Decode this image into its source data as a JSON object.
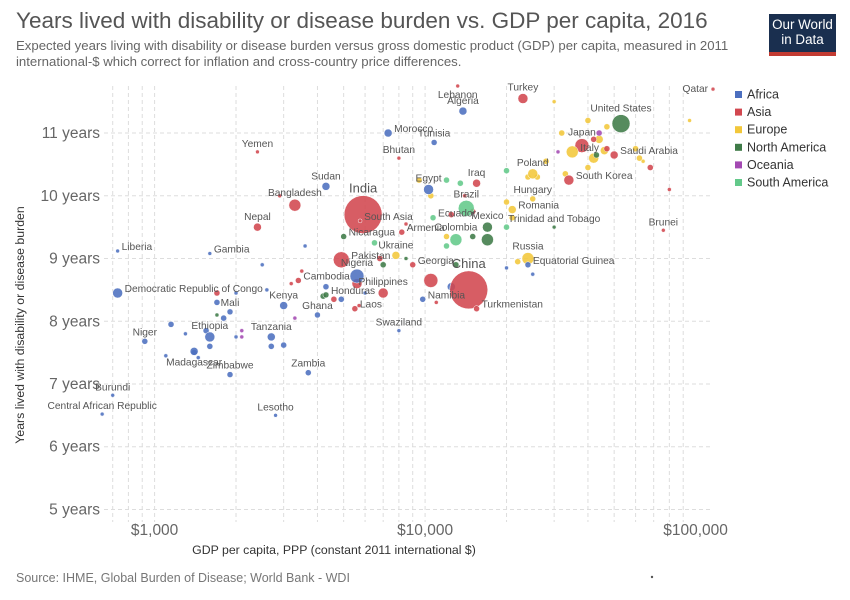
{
  "header": {
    "title": "Years lived with disability or disease burden vs. GDP per capita, 2016",
    "subtitle": "Expected years living with disability or disease burden versus gross domestic product (GDP) per capita, measured in 2011 international-$ which correct for inflation and cross-country price differences.",
    "logo_line1": "Our World",
    "logo_line2": "in Data"
  },
  "footer": {
    "source": "Source: IHME, Global Burden of Disease; World Bank - WDI"
  },
  "colors": {
    "Africa": "#4c6fbf",
    "Asia": "#d2474f",
    "Europe": "#f2c73a",
    "North America": "#3f7b48",
    "Oceania": "#a349b2",
    "South America": "#63c98a",
    "grid": "#dddddd",
    "text": "#555555"
  },
  "chart_data": {
    "type": "scatter",
    "title": "Years lived with disability or disease burden vs. GDP per capita, 2016",
    "xlabel": "GDP per capita, PPP (constant 2011 international $)",
    "ylabel": "Years lived with disability or disease burden",
    "x_scale": "log",
    "xlim": [
      650,
      115000
    ],
    "ylim": [
      4.8,
      11.75
    ],
    "x_ticks": [
      {
        "value": 1000,
        "label": "$1,000"
      },
      {
        "value": 10000,
        "label": "$10,000"
      },
      {
        "value": 100000,
        "label": "$100,000"
      }
    ],
    "y_ticks": [
      {
        "value": 5,
        "label": "5 years"
      },
      {
        "value": 6,
        "label": "6 years"
      },
      {
        "value": 7,
        "label": "7 years"
      },
      {
        "value": 8,
        "label": "8 years"
      },
      {
        "value": 9,
        "label": "9 years"
      },
      {
        "value": 10,
        "label": "10 years"
      },
      {
        "value": 11,
        "label": "11 years"
      }
    ],
    "legend": [
      "Africa",
      "Asia",
      "Europe",
      "North America",
      "Oceania",
      "South America"
    ],
    "legend_position": "right",
    "grid": true,
    "points": [
      {
        "label": "Qatar",
        "region": "Asia",
        "x": 116000,
        "y": 11.7,
        "size": 2,
        "label_side": "left"
      },
      {
        "label": "Lebanon",
        "region": "Asia",
        "x": 13200,
        "y": 11.75,
        "size": 2,
        "label_side": "below"
      },
      {
        "label": "Turkey",
        "region": "Asia",
        "x": 23000,
        "y": 11.55,
        "size": 5,
        "label_side": "above"
      },
      {
        "label": "Algeria",
        "region": "Africa",
        "x": 13800,
        "y": 11.35,
        "size": 4,
        "label_side": "above"
      },
      {
        "label": "United States",
        "region": "North America",
        "x": 53000,
        "y": 11.15,
        "size": 9,
        "label_side": "above"
      },
      {
        "label": "Morocco",
        "region": "Africa",
        "x": 7300,
        "y": 11.0,
        "size": 4,
        "label_side": "right"
      },
      {
        "label": "Tunisia",
        "region": "Africa",
        "x": 10800,
        "y": 10.85,
        "size": 3,
        "label_side": "above"
      },
      {
        "label": "Japan",
        "region": "Asia",
        "x": 38000,
        "y": 10.8,
        "size": 7,
        "label_side": "above"
      },
      {
        "label": "Italy",
        "region": "Europe",
        "x": 35000,
        "y": 10.7,
        "size": 6,
        "label_side": "right"
      },
      {
        "label": "Saudi Arabia",
        "region": "Asia",
        "x": 50000,
        "y": 10.65,
        "size": 4,
        "label_side": "right"
      },
      {
        "label": "Yemen",
        "region": "Asia",
        "x": 2400,
        "y": 10.7,
        "size": 2,
        "label_side": "above"
      },
      {
        "label": "Bhutan",
        "region": "Asia",
        "x": 8000,
        "y": 10.6,
        "size": 2,
        "label_side": "above"
      },
      {
        "label": "Poland",
        "region": "Europe",
        "x": 25000,
        "y": 10.35,
        "size": 5,
        "label_side": "above"
      },
      {
        "label": "South Korea",
        "region": "Asia",
        "x": 34000,
        "y": 10.25,
        "size": 5,
        "label_side": "right"
      },
      {
        "label": "Iraq",
        "region": "Asia",
        "x": 15500,
        "y": 10.2,
        "size": 4,
        "label_side": "above"
      },
      {
        "label": "Egypt",
        "region": "Africa",
        "x": 10300,
        "y": 10.1,
        "size": 5,
        "label_side": "above"
      },
      {
        "label": "Sudan",
        "region": "Africa",
        "x": 4300,
        "y": 10.15,
        "size": 4,
        "label_side": "above"
      },
      {
        "label": "Hungary",
        "region": "Europe",
        "x": 25000,
        "y": 9.95,
        "size": 3,
        "label_side": "above"
      },
      {
        "label": "Bangladesh",
        "region": "Asia",
        "x": 3300,
        "y": 9.85,
        "size": 6,
        "label_side": "above"
      },
      {
        "label": "India",
        "region": "Asia",
        "x": 5900,
        "y": 9.7,
        "size": 19,
        "label_side": "above"
      },
      {
        "label": "Brazil",
        "region": "South America",
        "x": 14200,
        "y": 9.8,
        "size": 8,
        "label_side": "above"
      },
      {
        "label": "Romania",
        "region": "Europe",
        "x": 21000,
        "y": 9.78,
        "size": 4,
        "label_side": "right"
      },
      {
        "label": "Ecuador",
        "region": "South America",
        "x": 10700,
        "y": 9.65,
        "size": 3,
        "label_side": "right"
      },
      {
        "label": "South Asia",
        "region": "Asia",
        "x": 5750,
        "y": 9.6,
        "size": 2,
        "label_side": "right"
      },
      {
        "label": "Trinidad and Tobago",
        "region": "North America",
        "x": 30000,
        "y": 9.5,
        "size": 2,
        "label_side": "above"
      },
      {
        "label": "Brunei",
        "region": "Asia",
        "x": 76000,
        "y": 9.45,
        "size": 2,
        "label_side": "above"
      },
      {
        "label": "Mexico",
        "region": "North America",
        "x": 17000,
        "y": 9.5,
        "size": 5,
        "label_side": "above"
      },
      {
        "label": "Nepal",
        "region": "Asia",
        "x": 2400,
        "y": 9.5,
        "size": 4,
        "label_side": "above"
      },
      {
        "label": "Nicaragua",
        "region": "North America",
        "x": 5000,
        "y": 9.35,
        "size": 3,
        "label_side": "right"
      },
      {
        "label": "Armenia",
        "region": "Asia",
        "x": 8200,
        "y": 9.42,
        "size": 3,
        "label_side": "right"
      },
      {
        "label": "Colombia",
        "region": "South America",
        "x": 13000,
        "y": 9.3,
        "size": 6,
        "label_side": "above"
      },
      {
        "label": "Liberia",
        "region": "Africa",
        "x": 730,
        "y": 9.12,
        "size": 2,
        "label_side": "right"
      },
      {
        "label": "Gambia",
        "region": "Africa",
        "x": 1600,
        "y": 9.08,
        "size": 2,
        "label_side": "right"
      },
      {
        "label": "Ukraine",
        "region": "Europe",
        "x": 7800,
        "y": 9.05,
        "size": 4,
        "label_side": "above"
      },
      {
        "label": "Russia",
        "region": "Europe",
        "x": 24000,
        "y": 9.0,
        "size": 6,
        "label_side": "above"
      },
      {
        "label": "Pakistan",
        "region": "Asia",
        "x": 4900,
        "y": 8.98,
        "size": 8,
        "label_side": "right"
      },
      {
        "label": "Georgia",
        "region": "Asia",
        "x": 9000,
        "y": 8.9,
        "size": 3,
        "label_side": "right"
      },
      {
        "label": "China",
        "region": "Asia",
        "x": 14500,
        "y": 8.5,
        "size": 19,
        "label_side": "above"
      },
      {
        "label": "Nigeria",
        "region": "Africa",
        "x": 5600,
        "y": 8.72,
        "size": 7,
        "label_side": "above"
      },
      {
        "label": "Equatorial Guinea",
        "region": "Africa",
        "x": 24000,
        "y": 8.9,
        "size": 3,
        "label_side": "right"
      },
      {
        "label": "Cambodia",
        "region": "Asia",
        "x": 3400,
        "y": 8.65,
        "size": 3,
        "label_side": "right"
      },
      {
        "label": "Democratic Republic of Congo",
        "region": "Africa",
        "x": 730,
        "y": 8.45,
        "size": 5,
        "label_side": "right"
      },
      {
        "label": "Philippines",
        "region": "Asia",
        "x": 7000,
        "y": 8.45,
        "size": 5,
        "label_side": "above"
      },
      {
        "label": "Honduras",
        "region": "North America",
        "x": 4300,
        "y": 8.42,
        "size": 3,
        "label_side": "right"
      },
      {
        "label": "Namibia",
        "region": "Africa",
        "x": 9800,
        "y": 8.35,
        "size": 3,
        "label_side": "right"
      },
      {
        "label": "Kenya",
        "region": "Africa",
        "x": 3000,
        "y": 8.25,
        "size": 4,
        "label_side": "above"
      },
      {
        "label": "Mali",
        "region": "Africa",
        "x": 1900,
        "y": 8.15,
        "size": 3,
        "label_side": "above"
      },
      {
        "label": "Turkmenistan",
        "region": "Asia",
        "x": 15500,
        "y": 8.2,
        "size": 3,
        "label_side": "right"
      },
      {
        "label": "Laos",
        "region": "Asia",
        "x": 5500,
        "y": 8.2,
        "size": 3,
        "label_side": "right"
      },
      {
        "label": "Ghana",
        "region": "Africa",
        "x": 4000,
        "y": 8.1,
        "size": 3,
        "label_side": "above"
      },
      {
        "label": "Swaziland",
        "region": "Africa",
        "x": 8000,
        "y": 7.85,
        "size": 2,
        "label_side": "above"
      },
      {
        "label": "Niger",
        "region": "Africa",
        "x": 920,
        "y": 7.68,
        "size": 3,
        "label_side": "above"
      },
      {
        "label": "Ethiopia",
        "region": "Africa",
        "x": 1600,
        "y": 7.75,
        "size": 5,
        "label_side": "above"
      },
      {
        "label": "Tanzania",
        "region": "Africa",
        "x": 2700,
        "y": 7.75,
        "size": 4,
        "label_side": "above"
      },
      {
        "label": "Madagascar",
        "region": "Africa",
        "x": 1400,
        "y": 7.52,
        "size": 4,
        "label_side": "below"
      },
      {
        "label": "Zimbabwe",
        "region": "Africa",
        "x": 1900,
        "y": 7.15,
        "size": 3,
        "label_side": "above"
      },
      {
        "label": "Zambia",
        "region": "Africa",
        "x": 3700,
        "y": 7.18,
        "size": 3,
        "label_side": "above"
      },
      {
        "label": "Burundi",
        "region": "Africa",
        "x": 700,
        "y": 6.82,
        "size": 2,
        "label_side": "above"
      },
      {
        "label": "Central African Republic",
        "region": "Africa",
        "x": 640,
        "y": 6.52,
        "size": 2,
        "label_side": "above"
      },
      {
        "label": "Lesotho",
        "region": "Africa",
        "x": 2800,
        "y": 6.5,
        "size": 2,
        "label_side": "above"
      }
    ],
    "unlabeled_points": [
      {
        "region": "Europe",
        "x": 30000,
        "y": 11.5,
        "size": 2
      },
      {
        "region": "Europe",
        "x": 32000,
        "y": 11.0,
        "size": 3
      },
      {
        "region": "Europe",
        "x": 40000,
        "y": 11.2,
        "size": 3
      },
      {
        "region": "Europe",
        "x": 44000,
        "y": 10.9,
        "size": 4
      },
      {
        "region": "Europe",
        "x": 47000,
        "y": 11.1,
        "size": 3
      },
      {
        "region": "Europe",
        "x": 42000,
        "y": 10.6,
        "size": 5
      },
      {
        "region": "Europe",
        "x": 46000,
        "y": 10.72,
        "size": 4
      },
      {
        "region": "Europe",
        "x": 40000,
        "y": 10.45,
        "size": 3
      },
      {
        "region": "Europe",
        "x": 60000,
        "y": 10.75,
        "size": 3
      },
      {
        "region": "Europe",
        "x": 62000,
        "y": 10.6,
        "size": 3
      },
      {
        "region": "Europe",
        "x": 64000,
        "y": 10.55,
        "size": 2
      },
      {
        "region": "Europe",
        "x": 95000,
        "y": 11.2,
        "size": 2
      },
      {
        "region": "Europe",
        "x": 28000,
        "y": 10.55,
        "size": 3
      },
      {
        "region": "Europe",
        "x": 26000,
        "y": 10.3,
        "size": 3
      },
      {
        "region": "Europe",
        "x": 24000,
        "y": 10.3,
        "size": 3
      },
      {
        "region": "Europe",
        "x": 33000,
        "y": 10.35,
        "size": 3
      },
      {
        "region": "Europe",
        "x": 20000,
        "y": 9.9,
        "size": 3
      },
      {
        "region": "Europe",
        "x": 21000,
        "y": 9.65,
        "size": 3
      },
      {
        "region": "Europe",
        "x": 10500,
        "y": 10.0,
        "size": 3
      },
      {
        "region": "Europe",
        "x": 9500,
        "y": 10.25,
        "size": 3
      },
      {
        "region": "Europe",
        "x": 12000,
        "y": 9.35,
        "size": 3
      },
      {
        "region": "Europe",
        "x": 22000,
        "y": 8.95,
        "size": 3
      },
      {
        "region": "Asia",
        "x": 68000,
        "y": 10.45,
        "size": 3
      },
      {
        "region": "Asia",
        "x": 80000,
        "y": 10.1,
        "size": 2
      },
      {
        "region": "Asia",
        "x": 42000,
        "y": 10.9,
        "size": 3
      },
      {
        "region": "Asia",
        "x": 47000,
        "y": 10.75,
        "size": 3
      },
      {
        "region": "Asia",
        "x": 15000,
        "y": 9.75,
        "size": 3
      },
      {
        "region": "Asia",
        "x": 12500,
        "y": 9.7,
        "size": 3
      },
      {
        "region": "Asia",
        "x": 8500,
        "y": 9.55,
        "size": 2
      },
      {
        "region": "Asia",
        "x": 2900,
        "y": 10.0,
        "size": 2
      },
      {
        "region": "Asia",
        "x": 3500,
        "y": 8.8,
        "size": 2
      },
      {
        "region": "Asia",
        "x": 6800,
        "y": 9.0,
        "size": 3
      },
      {
        "region": "Asia",
        "x": 5600,
        "y": 8.6,
        "size": 5
      },
      {
        "region": "Asia",
        "x": 3200,
        "y": 8.6,
        "size": 2
      },
      {
        "region": "Asia",
        "x": 4600,
        "y": 8.35,
        "size": 3
      },
      {
        "region": "Asia",
        "x": 11000,
        "y": 8.3,
        "size": 2
      },
      {
        "region": "Asia",
        "x": 1700,
        "y": 8.45,
        "size": 3
      },
      {
        "region": "Asia",
        "x": 10500,
        "y": 8.65,
        "size": 7
      },
      {
        "region": "Asia",
        "x": 5700,
        "y": 8.25,
        "size": 2
      },
      {
        "region": "Asia",
        "x": 14000,
        "y": 10.0,
        "size": 2
      },
      {
        "region": "Africa",
        "x": 1700,
        "y": 8.3,
        "size": 3
      },
      {
        "region": "Africa",
        "x": 2000,
        "y": 8.45,
        "size": 2
      },
      {
        "region": "Africa",
        "x": 1800,
        "y": 8.05,
        "size": 3
      },
      {
        "region": "Africa",
        "x": 1150,
        "y": 7.95,
        "size": 3
      },
      {
        "region": "Africa",
        "x": 1300,
        "y": 7.8,
        "size": 2
      },
      {
        "region": "Africa",
        "x": 1550,
        "y": 7.85,
        "size": 3
      },
      {
        "region": "Africa",
        "x": 1600,
        "y": 7.6,
        "size": 3
      },
      {
        "region": "Africa",
        "x": 1100,
        "y": 7.45,
        "size": 2
      },
      {
        "region": "Africa",
        "x": 1400,
        "y": 7.5,
        "size": 3
      },
      {
        "region": "Africa",
        "x": 1450,
        "y": 7.42,
        "size": 2
      },
      {
        "region": "Africa",
        "x": 2000,
        "y": 7.75,
        "size": 2
      },
      {
        "region": "Africa",
        "x": 2700,
        "y": 7.6,
        "size": 3
      },
      {
        "region": "Africa",
        "x": 3000,
        "y": 7.62,
        "size": 3
      },
      {
        "region": "Africa",
        "x": 2600,
        "y": 8.5,
        "size": 2
      },
      {
        "region": "Africa",
        "x": 3600,
        "y": 9.2,
        "size": 2
      },
      {
        "region": "Africa",
        "x": 2500,
        "y": 8.9,
        "size": 2
      },
      {
        "region": "Africa",
        "x": 4300,
        "y": 8.55,
        "size": 3
      },
      {
        "region": "Africa",
        "x": 4900,
        "y": 8.35,
        "size": 3
      },
      {
        "region": "Africa",
        "x": 6000,
        "y": 8.45,
        "size": 2
      },
      {
        "region": "Africa",
        "x": 12500,
        "y": 8.55,
        "size": 4
      },
      {
        "region": "Africa",
        "x": 25000,
        "y": 8.75,
        "size": 2
      },
      {
        "region": "Africa",
        "x": 20000,
        "y": 8.85,
        "size": 2
      },
      {
        "region": "North America",
        "x": 17000,
        "y": 9.3,
        "size": 6
      },
      {
        "region": "North America",
        "x": 15000,
        "y": 9.35,
        "size": 3
      },
      {
        "region": "North America",
        "x": 7000,
        "y": 8.9,
        "size": 3
      },
      {
        "region": "North America",
        "x": 8500,
        "y": 9.0,
        "size": 2
      },
      {
        "region": "North America",
        "x": 4200,
        "y": 8.4,
        "size": 3
      },
      {
        "region": "North America",
        "x": 13000,
        "y": 8.9,
        "size": 3
      },
      {
        "region": "North America",
        "x": 43000,
        "y": 10.65,
        "size": 3
      },
      {
        "region": "North America",
        "x": 1700,
        "y": 8.1,
        "size": 2
      },
      {
        "region": "South America",
        "x": 12000,
        "y": 10.25,
        "size": 3
      },
      {
        "region": "South America",
        "x": 20000,
        "y": 10.4,
        "size": 3
      },
      {
        "region": "South America",
        "x": 13500,
        "y": 10.2,
        "size": 3
      },
      {
        "region": "South America",
        "x": 6500,
        "y": 9.25,
        "size": 3
      },
      {
        "region": "South America",
        "x": 12000,
        "y": 9.2,
        "size": 3
      },
      {
        "region": "South America",
        "x": 20000,
        "y": 9.5,
        "size": 3
      },
      {
        "region": "Oceania",
        "x": 44000,
        "y": 11.0,
        "size": 3
      },
      {
        "region": "Oceania",
        "x": 31000,
        "y": 10.7,
        "size": 2
      },
      {
        "region": "Oceania",
        "x": 2100,
        "y": 7.85,
        "size": 2
      },
      {
        "region": "Oceania",
        "x": 2100,
        "y": 7.75,
        "size": 2
      },
      {
        "region": "Oceania",
        "x": 3300,
        "y": 8.05,
        "size": 2
      }
    ]
  }
}
